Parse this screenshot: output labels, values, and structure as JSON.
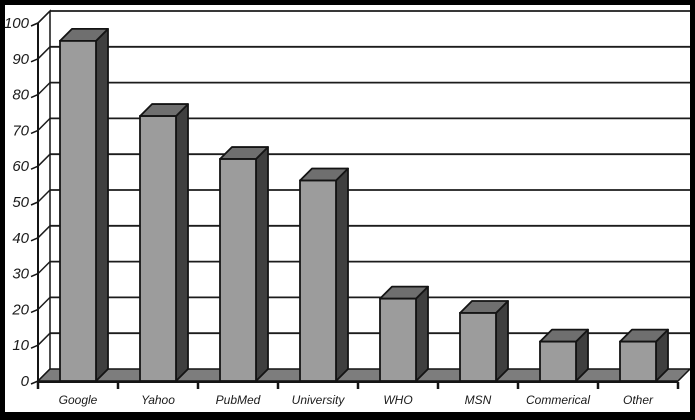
{
  "chart_data": {
    "type": "bar",
    "style": "3d-grayscale-excel",
    "title": "",
    "xlabel": "",
    "ylabel": "",
    "categories": [
      "Google",
      "Yahoo",
      "PubMed",
      "University",
      "WHO",
      "MSN",
      "Commerical",
      "Other"
    ],
    "values": [
      95,
      74,
      62,
      56,
      23,
      19,
      11,
      11
    ],
    "ylim": [
      0,
      100
    ],
    "ytick_step": 10,
    "ytick_labels": [
      "0",
      "10",
      "20",
      "30",
      "40",
      "50",
      "60",
      "70",
      "80",
      "90",
      "100"
    ],
    "grid": true,
    "legend": false,
    "colors": {
      "background": "#ffffff",
      "frame": "#000000",
      "bar_front": "#9c9c9c",
      "bar_top": "#6f6f6f",
      "bar_side": "#3f3f3f",
      "floor": "#7d7d7d",
      "wall": "#ffffff",
      "gridline": "#1c1c1c",
      "outline": "#141414",
      "text": "#1a1a1a"
    }
  }
}
